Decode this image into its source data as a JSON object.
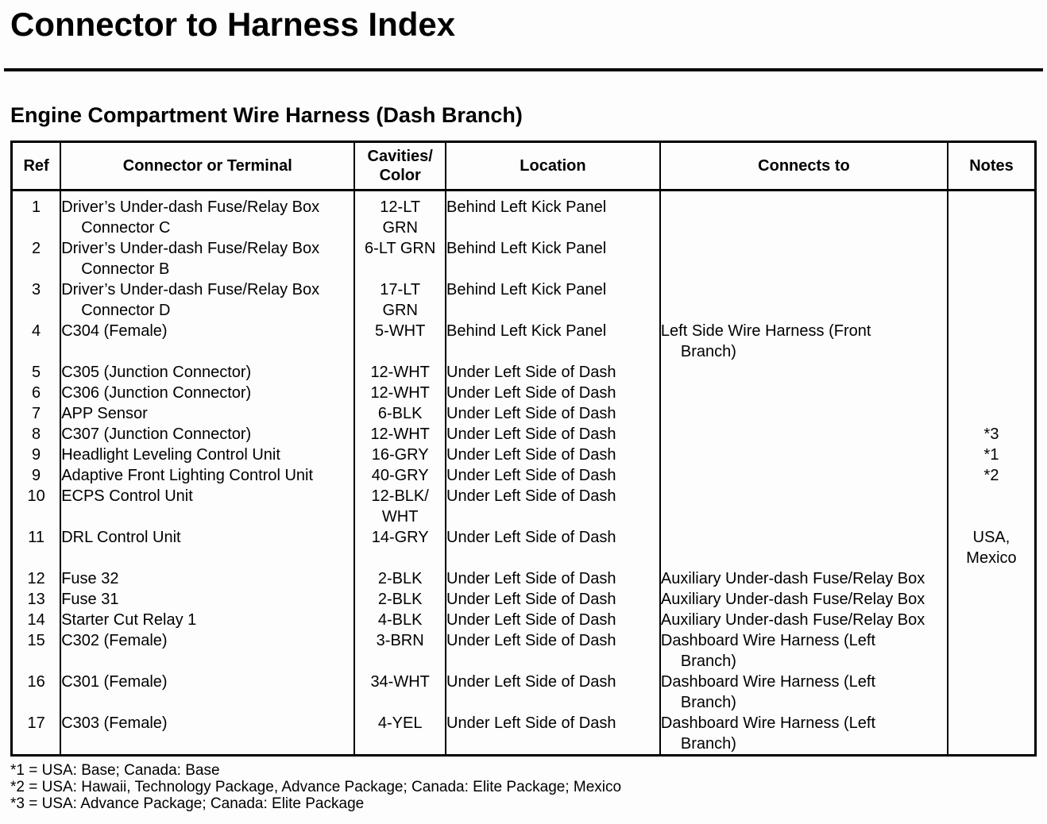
{
  "page": {
    "title": "Connector to Harness Index",
    "section_title": "Engine Compartment Wire Harness (Dash Branch)"
  },
  "table": {
    "headers": {
      "ref": "Ref",
      "connector": "Connector or Terminal",
      "cavities_lines": [
        "Cavities/",
        "Color"
      ],
      "location": "Location",
      "connects_to": "Connects to",
      "notes": "Notes"
    },
    "rows": [
      {
        "ref": "1",
        "connector": [
          "Driver’s Under-dash Fuse/Relay Box",
          "Connector C"
        ],
        "cavities": [
          "12-LT",
          "GRN"
        ],
        "location": "Behind Left Kick Panel",
        "connects_to": [],
        "notes": []
      },
      {
        "ref": "2",
        "connector": [
          "Driver’s Under-dash Fuse/Relay Box",
          "Connector B"
        ],
        "cavities": [
          "6-LT GRN"
        ],
        "location": "Behind Left Kick Panel",
        "connects_to": [],
        "notes": []
      },
      {
        "ref": "3",
        "connector": [
          "Driver’s Under-dash Fuse/Relay Box",
          "Connector D"
        ],
        "cavities": [
          "17-LT",
          "GRN"
        ],
        "location": "Behind Left Kick Panel",
        "connects_to": [],
        "notes": []
      },
      {
        "ref": "4",
        "connector": [
          "C304 (Female)"
        ],
        "cavities": [
          "5-WHT"
        ],
        "location": "Behind Left Kick Panel",
        "connects_to": [
          "Left Side Wire Harness (Front",
          "Branch)"
        ],
        "notes": []
      },
      {
        "ref": "5",
        "connector": [
          "C305 (Junction Connector)"
        ],
        "cavities": [
          "12-WHT"
        ],
        "location": "Under Left Side of Dash",
        "connects_to": [],
        "notes": []
      },
      {
        "ref": "6",
        "connector": [
          "C306 (Junction Connector)"
        ],
        "cavities": [
          "12-WHT"
        ],
        "location": "Under Left Side of Dash",
        "connects_to": [],
        "notes": []
      },
      {
        "ref": "7",
        "connector": [
          "APP Sensor"
        ],
        "cavities": [
          "6-BLK"
        ],
        "location": "Under Left Side of Dash",
        "connects_to": [],
        "notes": []
      },
      {
        "ref": "8",
        "connector": [
          "C307 (Junction Connector)"
        ],
        "cavities": [
          "12-WHT"
        ],
        "location": "Under Left Side of Dash",
        "connects_to": [],
        "notes": [
          "*3"
        ]
      },
      {
        "ref": "9",
        "connector": [
          "Headlight Leveling Control Unit"
        ],
        "cavities": [
          "16-GRY"
        ],
        "location": "Under Left Side of Dash",
        "connects_to": [],
        "notes": [
          "*1"
        ]
      },
      {
        "ref": "9",
        "connector": [
          "Adaptive Front Lighting Control Unit"
        ],
        "cavities": [
          "40-GRY"
        ],
        "location": "Under Left Side of Dash",
        "connects_to": [],
        "notes": [
          "*2"
        ]
      },
      {
        "ref": "10",
        "connector": [
          "ECPS Control Unit"
        ],
        "cavities": [
          "12-BLK/",
          "WHT"
        ],
        "location": "Under Left Side of Dash",
        "connects_to": [],
        "notes": []
      },
      {
        "ref": "11",
        "connector": [
          "DRL Control Unit"
        ],
        "cavities": [
          "14-GRY"
        ],
        "location": "Under Left Side of Dash",
        "connects_to": [],
        "notes": [
          "USA,",
          "Mexico"
        ]
      },
      {
        "ref": "12",
        "connector": [
          "Fuse 32"
        ],
        "cavities": [
          "2-BLK"
        ],
        "location": "Under Left Side of Dash",
        "connects_to": [
          "Auxiliary Under-dash Fuse/Relay Box"
        ],
        "notes": []
      },
      {
        "ref": "13",
        "connector": [
          "Fuse 31"
        ],
        "cavities": [
          "2-BLK"
        ],
        "location": "Under Left Side of Dash",
        "connects_to": [
          "Auxiliary Under-dash Fuse/Relay Box"
        ],
        "notes": []
      },
      {
        "ref": "14",
        "connector": [
          "Starter Cut Relay 1"
        ],
        "cavities": [
          "4-BLK"
        ],
        "location": "Under Left Side of Dash",
        "connects_to": [
          "Auxiliary Under-dash Fuse/Relay Box"
        ],
        "notes": []
      },
      {
        "ref": "15",
        "connector": [
          "C302 (Female)"
        ],
        "cavities": [
          "3-BRN"
        ],
        "location": "Under Left Side of Dash",
        "connects_to": [
          "Dashboard Wire Harness (Left",
          "Branch)"
        ],
        "notes": []
      },
      {
        "ref": "16",
        "connector": [
          "C301 (Female)"
        ],
        "cavities": [
          "34-WHT"
        ],
        "location": "Under Left Side of Dash",
        "connects_to": [
          "Dashboard Wire Harness (Left",
          "Branch)"
        ],
        "notes": []
      },
      {
        "ref": "17",
        "connector": [
          "C303 (Female)"
        ],
        "cavities": [
          "4-YEL"
        ],
        "location": "Under Left Side of Dash",
        "connects_to": [
          "Dashboard Wire Harness (Left",
          "Branch)"
        ],
        "notes": []
      }
    ]
  },
  "footnotes": [
    "*1 = USA: Base; Canada: Base",
    "*2 = USA: Hawaii, Technology Package, Advance Package; Canada: Elite Package; Mexico",
    "*3 = USA: Advance Package; Canada: Elite Package"
  ]
}
